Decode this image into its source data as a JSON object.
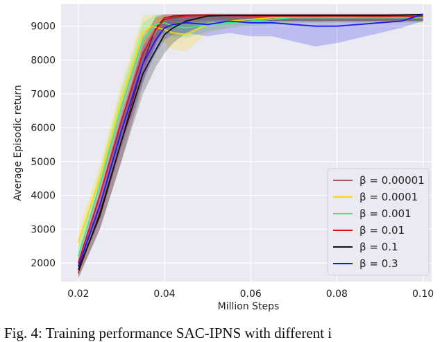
{
  "caption": "Fig. 4: Training performance SAC-IPNS with different i",
  "chart_data": {
    "type": "line",
    "xlabel": "Million Steps",
    "ylabel": "Average Episodic return",
    "xlim": [
      0.016,
      0.102
    ],
    "ylim": [
      1450,
      9650
    ],
    "xticks": [
      0.02,
      0.04,
      0.06,
      0.08,
      0.1
    ],
    "xtick_labels": [
      "0.02",
      "0.04",
      "0.06",
      "0.08",
      "0.10"
    ],
    "yticks": [
      2000,
      3000,
      4000,
      5000,
      6000,
      7000,
      8000,
      9000
    ],
    "ytick_labels": [
      "2000",
      "3000",
      "4000",
      "5000",
      "6000",
      "7000",
      "8000",
      "9000"
    ],
    "grid": true,
    "legend_position": "lower-right",
    "series": [
      {
        "name": "β = 0.00001",
        "color": "#8b0000",
        "x": [
          0.02,
          0.025,
          0.03,
          0.035,
          0.038,
          0.04,
          0.042,
          0.045,
          0.05,
          0.055,
          0.06,
          0.065,
          0.07,
          0.075,
          0.08,
          0.085,
          0.09,
          0.095,
          0.1
        ],
        "y": [
          1700,
          3500,
          5600,
          7900,
          8950,
          9250,
          9300,
          9320,
          9330,
          9320,
          9300,
          9310,
          9300,
          9290,
          9300,
          9290,
          9280,
          9300,
          9250
        ],
        "lower": [
          1550,
          3000,
          5000,
          7300,
          8500,
          8950,
          9100,
          9150,
          9200,
          9180,
          9150,
          9150,
          9150,
          9130,
          9150,
          9130,
          9150,
          9150,
          9150
        ],
        "upper": [
          1850,
          4000,
          6200,
          8500,
          9300,
          9350,
          9350,
          9350,
          9360,
          9350,
          9350,
          9350,
          9350,
          9350,
          9350,
          9350,
          9350,
          9350,
          9350
        ]
      },
      {
        "name": "β = 0.0001",
        "color": "#ffd500",
        "x": [
          0.02,
          0.025,
          0.03,
          0.035,
          0.037,
          0.04,
          0.042,
          0.045,
          0.05,
          0.055,
          0.06,
          0.065,
          0.07,
          0.075,
          0.08,
          0.085,
          0.09,
          0.095,
          0.1
        ],
        "y": [
          2600,
          4500,
          6800,
          8800,
          9000,
          8900,
          8800,
          8750,
          9050,
          9150,
          9200,
          9250,
          9250,
          9250,
          9250,
          9250,
          9250,
          9250,
          9250
        ],
        "lower": [
          2300,
          4100,
          6300,
          8300,
          8700,
          8500,
          8300,
          8250,
          8800,
          8950,
          9050,
          9100,
          9100,
          9100,
          9100,
          9100,
          9100,
          9100,
          9100
        ],
        "upper": [
          2900,
          4900,
          7300,
          9300,
          9350,
          9300,
          9300,
          9250,
          9300,
          9330,
          9340,
          9340,
          9340,
          9340,
          9340,
          9340,
          9340,
          9340,
          9340
        ]
      },
      {
        "name": "β = 0.001",
        "color": "#33ee88",
        "x": [
          0.02,
          0.025,
          0.03,
          0.035,
          0.038,
          0.04,
          0.042,
          0.045,
          0.05,
          0.055,
          0.06,
          0.065,
          0.07,
          0.075,
          0.08,
          0.085,
          0.09,
          0.095,
          0.1
        ],
        "y": [
          2200,
          4300,
          6600,
          8600,
          9050,
          9100,
          9000,
          8950,
          9050,
          9100,
          9150,
          9200,
          9250,
          9250,
          9250,
          9250,
          9250,
          9250,
          9250
        ],
        "lower": [
          1950,
          3900,
          6100,
          8100,
          8700,
          8800,
          8700,
          8650,
          8850,
          8950,
          9000,
          9050,
          9100,
          9100,
          9100,
          9100,
          9100,
          9100,
          9100
        ],
        "upper": [
          2450,
          4700,
          7100,
          9100,
          9350,
          9350,
          9300,
          9250,
          9300,
          9300,
          9320,
          9340,
          9340,
          9340,
          9340,
          9340,
          9340,
          9340,
          9340
        ]
      },
      {
        "name": "β = 0.01",
        "color": "#dd1111",
        "x": [
          0.02,
          0.025,
          0.03,
          0.035,
          0.038,
          0.04,
          0.042,
          0.045,
          0.05,
          0.055,
          0.06,
          0.065,
          0.07,
          0.075,
          0.08,
          0.085,
          0.09,
          0.095,
          0.1
        ],
        "y": [
          2000,
          4000,
          6200,
          8200,
          8900,
          9200,
          9250,
          9300,
          9320,
          9310,
          9300,
          9300,
          9300,
          9300,
          9300,
          9300,
          9300,
          9300,
          9300
        ],
        "lower": [
          1800,
          3600,
          5700,
          7700,
          8500,
          8900,
          9000,
          9100,
          9150,
          9150,
          9150,
          9150,
          9150,
          9150,
          9150,
          9150,
          9150,
          9150,
          9150
        ],
        "upper": [
          2200,
          4400,
          6700,
          8700,
          9250,
          9350,
          9360,
          9360,
          9360,
          9360,
          9360,
          9360,
          9360,
          9360,
          9360,
          9360,
          9360,
          9360,
          9360
        ]
      },
      {
        "name": "β = 0.1",
        "color": "#111111",
        "x": [
          0.02,
          0.025,
          0.03,
          0.035,
          0.038,
          0.04,
          0.042,
          0.045,
          0.05,
          0.055,
          0.06,
          0.065,
          0.07,
          0.075,
          0.08,
          0.085,
          0.09,
          0.095,
          0.1
        ],
        "y": [
          1800,
          3400,
          5600,
          7600,
          8300,
          8750,
          8950,
          9150,
          9300,
          9320,
          9320,
          9320,
          9320,
          9320,
          9320,
          9320,
          9320,
          9330,
          9350
        ],
        "lower": [
          1550,
          3000,
          5000,
          7000,
          7800,
          8200,
          8500,
          8800,
          9100,
          9150,
          9150,
          9150,
          9150,
          9150,
          9150,
          9150,
          9150,
          9150,
          9150
        ],
        "upper": [
          2050,
          3800,
          6200,
          8200,
          8800,
          9200,
          9330,
          9350,
          9370,
          9370,
          9370,
          9370,
          9370,
          9370,
          9370,
          9370,
          9370,
          9370,
          9370
        ]
      },
      {
        "name": "β = 0.3",
        "color": "#1a1aee",
        "x": [
          0.02,
          0.025,
          0.03,
          0.035,
          0.038,
          0.04,
          0.042,
          0.045,
          0.05,
          0.055,
          0.06,
          0.065,
          0.07,
          0.075,
          0.08,
          0.085,
          0.09,
          0.095,
          0.1
        ],
        "y": [
          1900,
          3700,
          5900,
          7900,
          8600,
          8950,
          9050,
          9100,
          9050,
          9150,
          9100,
          9100,
          9050,
          9000,
          9000,
          9050,
          9100,
          9150,
          9350
        ],
        "lower": [
          1700,
          3300,
          5400,
          7400,
          8200,
          8600,
          8750,
          8800,
          8700,
          8800,
          8700,
          8700,
          8550,
          8400,
          8500,
          8650,
          8800,
          8950,
          9150
        ],
        "upper": [
          2100,
          4100,
          6400,
          8400,
          9000,
          9250,
          9300,
          9320,
          9330,
          9330,
          9330,
          9330,
          9320,
          9320,
          9320,
          9320,
          9330,
          9340,
          9370
        ]
      }
    ]
  }
}
